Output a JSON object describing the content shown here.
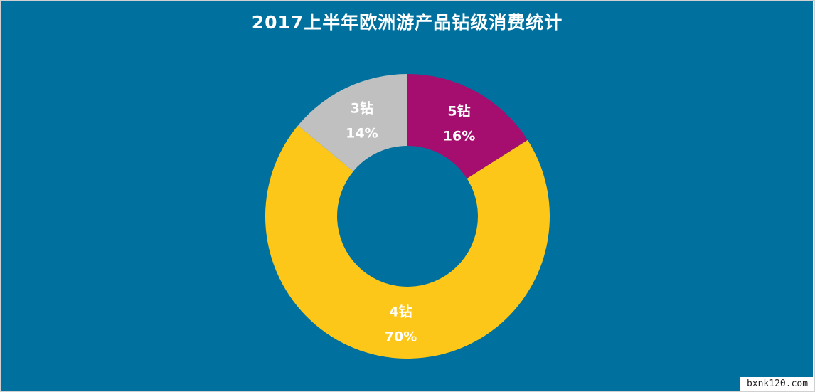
{
  "chart_data": {
    "type": "pie",
    "variant": "donut",
    "title": "2017上半年欧洲游产品钻级消费统计",
    "slices": [
      {
        "label": "5钻",
        "value": 16,
        "value_label": "16%",
        "color": "#A50D6E"
      },
      {
        "label": "4钻",
        "value": 70,
        "value_label": "70%",
        "color": "#FDC71A"
      },
      {
        "label": "3钻",
        "value": 14,
        "value_label": "14%",
        "color": "#C0C0C0"
      }
    ],
    "start_angle_deg": 0,
    "direction": "clockwise",
    "background_color": "#00719E",
    "label_color": "#ffffff",
    "legend": "none"
  },
  "watermark": "bxnk120.com"
}
